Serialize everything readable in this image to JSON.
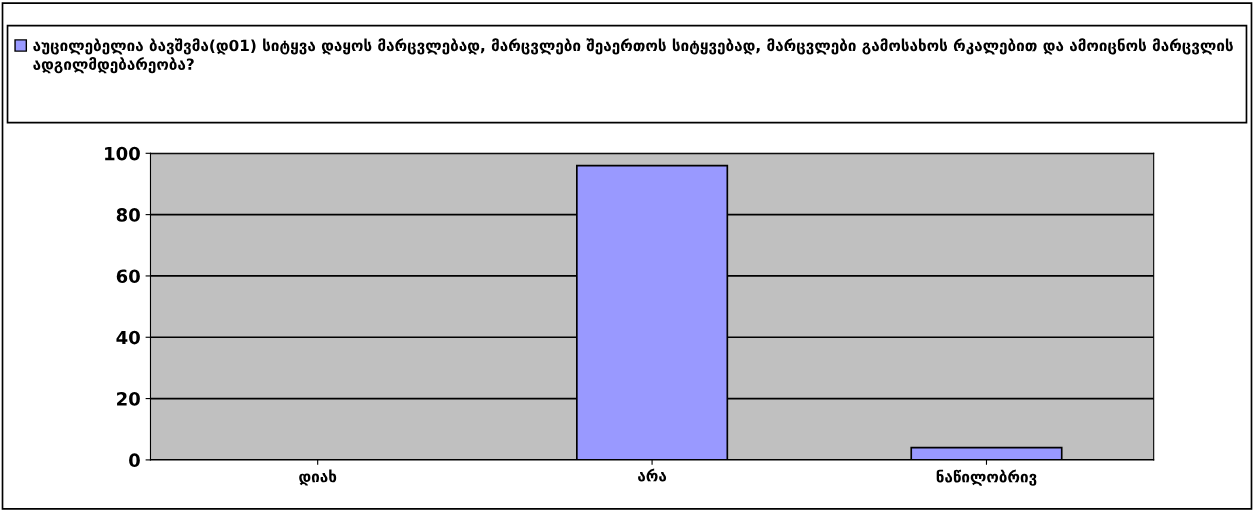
{
  "chart_data": {
    "type": "bar",
    "categories": [
      "დიახ",
      "არა",
      "ნაწილობრივ"
    ],
    "series": [
      {
        "name": "აუცილებელია ბავშვმა(დ01) სიტყვა დაყოს მარცვლებად, მარცვლები შეაერთოს სიტყვებად, მარცვლები გამოსახოს რკალებით და ამოიცნოს მარცვლის ადგილმდებარეობა?",
        "color": "#9999ff",
        "values": [
          0,
          96,
          4
        ]
      }
    ],
    "ylim": [
      0,
      100
    ],
    "yticks": [
      0,
      20,
      40,
      60,
      80,
      100
    ],
    "grid": "y",
    "legend": "top"
  }
}
